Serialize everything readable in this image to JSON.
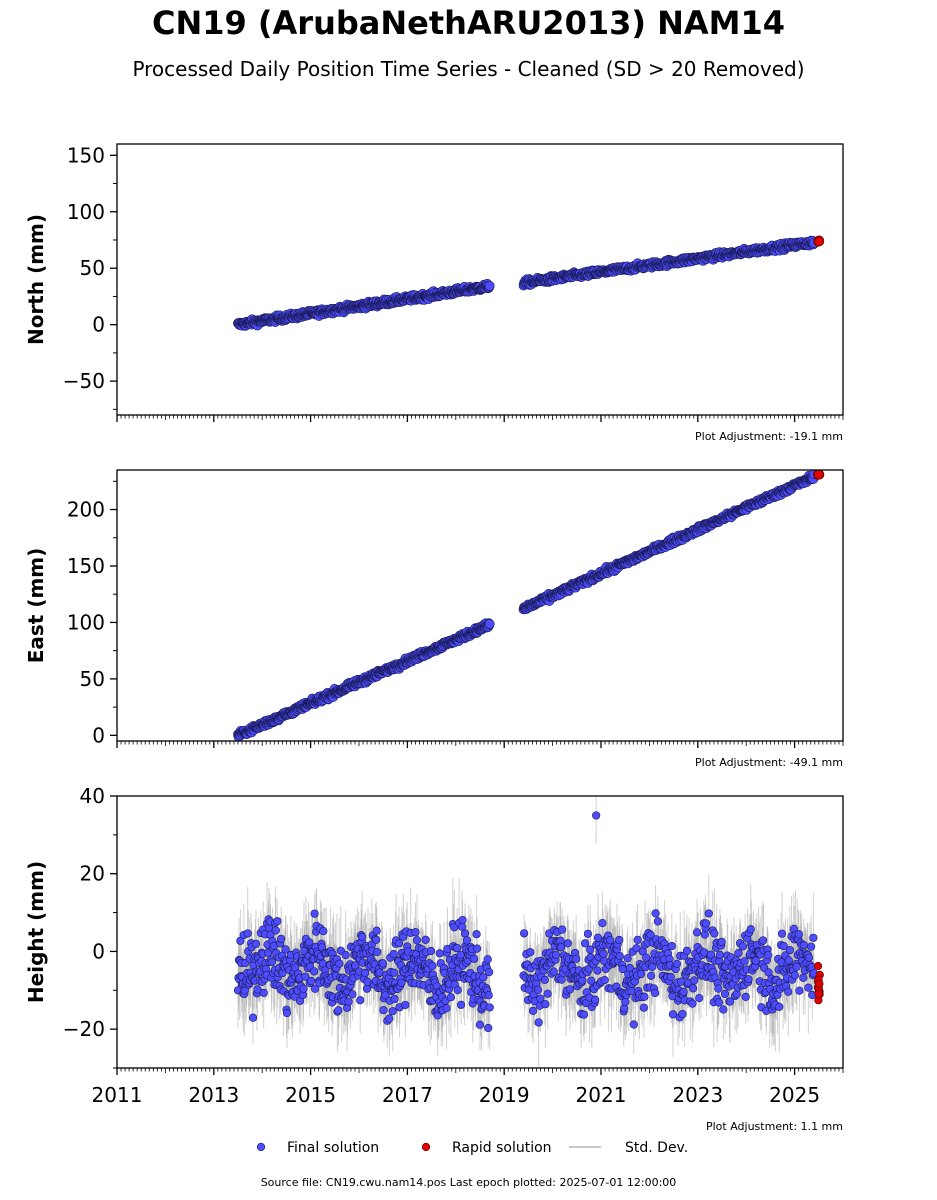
{
  "figure": {
    "title": "CN19 (ArubaNethARU2013) NAM14",
    "subtitle": "Processed Daily Position Time Series - Cleaned (SD > 20 Removed)",
    "footer": "Source file: CN19.cwu.nam14.pos  Last epoch plotted: 2025-07-01 12:00:00"
  },
  "legend": {
    "position": "bottom-center",
    "items": [
      {
        "label": "Final solution",
        "color": "#4d4dff"
      },
      {
        "label": "Rapid solution",
        "color": "#e00000"
      },
      {
        "label": "Std. Dev.",
        "color": "#c8c8c8"
      }
    ]
  },
  "chart_data": [
    {
      "type": "scatter",
      "ylabel": "North (mm)",
      "adjustment": "Plot Adjustment: -19.1 mm",
      "xlim": [
        2011,
        2026
      ],
      "ylim": [
        -80,
        160
      ],
      "yticks": [
        -50,
        0,
        50,
        100,
        150
      ],
      "grid": false,
      "final_segments": [
        {
          "x": [
            2013.5,
            2018.7
          ],
          "y": [
            0,
            34
          ]
        },
        {
          "x": [
            2019.4,
            2025.4
          ],
          "y": [
            37,
            73
          ]
        }
      ],
      "rapid": {
        "x": [
          2025.5
        ],
        "y": [
          74
        ]
      },
      "noise_mm": 1.8,
      "stddev_mm": 2
    },
    {
      "type": "scatter",
      "ylabel": "East (mm)",
      "adjustment": "Plot Adjustment: -49.1 mm",
      "xlim": [
        2011,
        2026
      ],
      "ylim": [
        -5,
        235
      ],
      "yticks": [
        0,
        50,
        100,
        150,
        200
      ],
      "grid": false,
      "final_segments": [
        {
          "x": [
            2013.5,
            2018.7
          ],
          "y": [
            0,
            98
          ]
        },
        {
          "x": [
            2019.4,
            2025.4
          ],
          "y": [
            112,
            229
          ]
        }
      ],
      "rapid": {
        "x": [
          2025.5
        ],
        "y": [
          231
        ]
      },
      "noise_mm": 1.8,
      "stddev_mm": 2
    },
    {
      "type": "scatter",
      "ylabel": "Height (mm)",
      "adjustment": "Plot Adjustment: 1.1 mm",
      "xlim": [
        2011,
        2026
      ],
      "ylim": [
        -30,
        40
      ],
      "yticks": [
        -20,
        0,
        20,
        40
      ],
      "xticks": [
        2011,
        2013,
        2015,
        2017,
        2019,
        2021,
        2023,
        2025
      ],
      "grid": false,
      "final_segments": [
        {
          "x": [
            2013.5,
            2018.7
          ],
          "y": [
            -3,
            -6
          ]
        },
        {
          "x": [
            2019.4,
            2025.4
          ],
          "y": [
            -5,
            -4
          ]
        }
      ],
      "rapid": {
        "x": [
          2025.5
        ],
        "y": [
          -8
        ]
      },
      "outliers": [
        {
          "x": 2020.9,
          "y": 35
        }
      ],
      "noise_mm": 6.5,
      "stddev_mm": 8
    }
  ]
}
